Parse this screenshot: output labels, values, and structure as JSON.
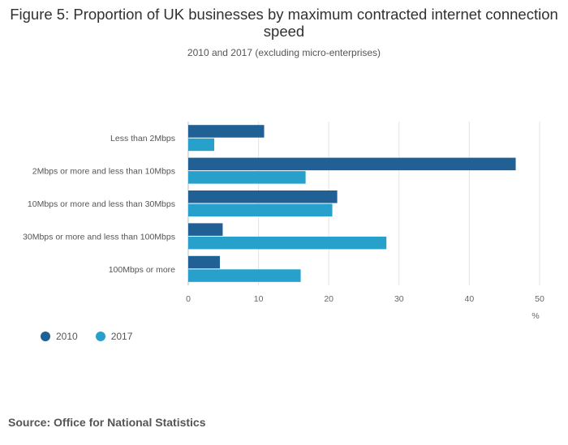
{
  "chart_data": {
    "type": "bar",
    "orientation": "horizontal",
    "title": "Figure 5: Proportion of UK businesses by maximum contracted internet connection speed",
    "subtitle": "2010 and 2017 (excluding micro-enterprises)",
    "categories": [
      "Less than 2Mbps",
      "2Mbps or more and less than 10Mbps",
      "10Mbps or more and less than 30Mbps",
      "30Mbps or more and less than 100Mbps",
      "100Mbps or more"
    ],
    "series": [
      {
        "name": "2010",
        "color": "#206095",
        "values": [
          10.8,
          46.6,
          21.2,
          4.9,
          4.5
        ]
      },
      {
        "name": "2017",
        "color": "#27A0CC",
        "values": [
          3.7,
          16.7,
          20.5,
          28.2,
          16.0
        ]
      }
    ],
    "xlabel": "%",
    "xlim": [
      0,
      50
    ],
    "xticks": [
      0,
      10,
      20,
      30,
      40,
      50
    ],
    "grid": true,
    "legend": "bottom-left"
  },
  "source": "Source: Office for National Statistics"
}
